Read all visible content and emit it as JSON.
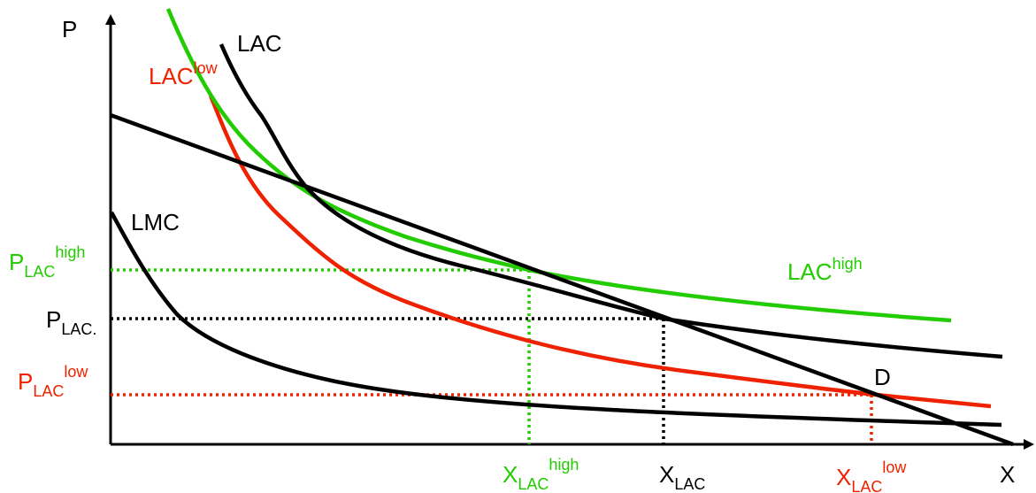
{
  "colors": {
    "black": "#000000",
    "green": "#22cc00",
    "red": "#ee2200"
  },
  "axes": {
    "y_label": "P",
    "x_label": "X"
  },
  "curves": {
    "lac": {
      "label": "LAC"
    },
    "lac_low": {
      "label": "LAC",
      "sup": "low"
    },
    "lac_high": {
      "label": "LAC",
      "sup": "high"
    },
    "lmc": {
      "label": "LMC"
    },
    "demand": {
      "label": "D"
    }
  },
  "price_labels": {
    "high": {
      "base": "P",
      "sub": "LAC",
      "sup": "high"
    },
    "mid": {
      "base": "P",
      "sub": "LAC."
    },
    "low": {
      "base": "P",
      "sub": "LAC",
      "sup": "low"
    }
  },
  "quantity_labels": {
    "high": {
      "base": "X",
      "sub": "LAC",
      "sup": "high"
    },
    "mid": {
      "base": "X",
      "sub": "LAC"
    },
    "low": {
      "base": "X",
      "sub": "LAC",
      "sup": "low"
    }
  }
}
